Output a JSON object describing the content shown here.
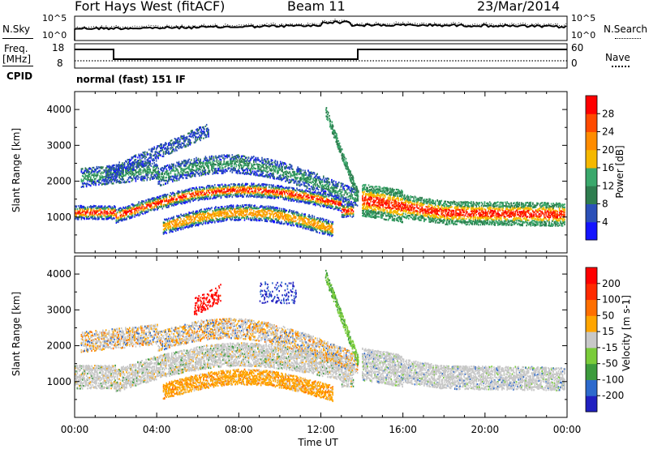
{
  "header": {
    "station": "Fort Hays West (fitACF)",
    "beam": "Beam 11",
    "date": "23/Mar/2014"
  },
  "noise_panel": {
    "left_label": "N.Sky",
    "right_label": "N.Search",
    "ticks": [
      "10^5",
      "10^0"
    ]
  },
  "freq_panel": {
    "left_label_1": "Freq.",
    "left_label_2": "[MHz]",
    "right_label": "Nave",
    "left_ticks": [
      "18",
      "8"
    ],
    "right_ticks": [
      "60",
      "0"
    ]
  },
  "cpid": {
    "label": "CPID",
    "mode": "normal (fast) 151 IF"
  },
  "colors": {
    "power_scale": [
      "#1414ff",
      "#2b50b8",
      "#2e7d4f",
      "#3aa86b",
      "#f5b800",
      "#ff8c00",
      "#ff4a00",
      "#ff0000"
    ],
    "velocity_scale": [
      "#2020c0",
      "#2d6acd",
      "#3d9b3d",
      "#7acc3a",
      "#c8c8c8",
      "#ffa500",
      "#ff6f00",
      "#ff2a00",
      "#ff0000"
    ]
  },
  "chart_data": [
    {
      "type": "heatmap",
      "panel": "power",
      "ylabel": "Slant Range [km]",
      "ylim": [
        0,
        4500
      ],
      "yticks": [
        "4000",
        "3000",
        "2000",
        "1000"
      ],
      "colorbar_label": "Power [dB]",
      "colorbar_ticks": [
        "28",
        "24",
        "20",
        "16",
        "12",
        "8",
        "4"
      ]
    },
    {
      "type": "heatmap",
      "panel": "velocity",
      "ylabel": "Slant Range [km]",
      "ylim": [
        0,
        4500
      ],
      "yticks": [
        "4000",
        "3000",
        "2000",
        "1000"
      ],
      "colorbar_label": "Velocity [m s-1]",
      "colorbar_ticks": [
        "200",
        "100",
        "50",
        "15",
        "-15",
        "-50",
        "-100",
        "-200"
      ],
      "xlabel": "Time UT",
      "xticks": [
        "00:00",
        "04:00",
        "08:00",
        "12:00",
        "16:00",
        "20:00",
        "00:00"
      ]
    }
  ]
}
